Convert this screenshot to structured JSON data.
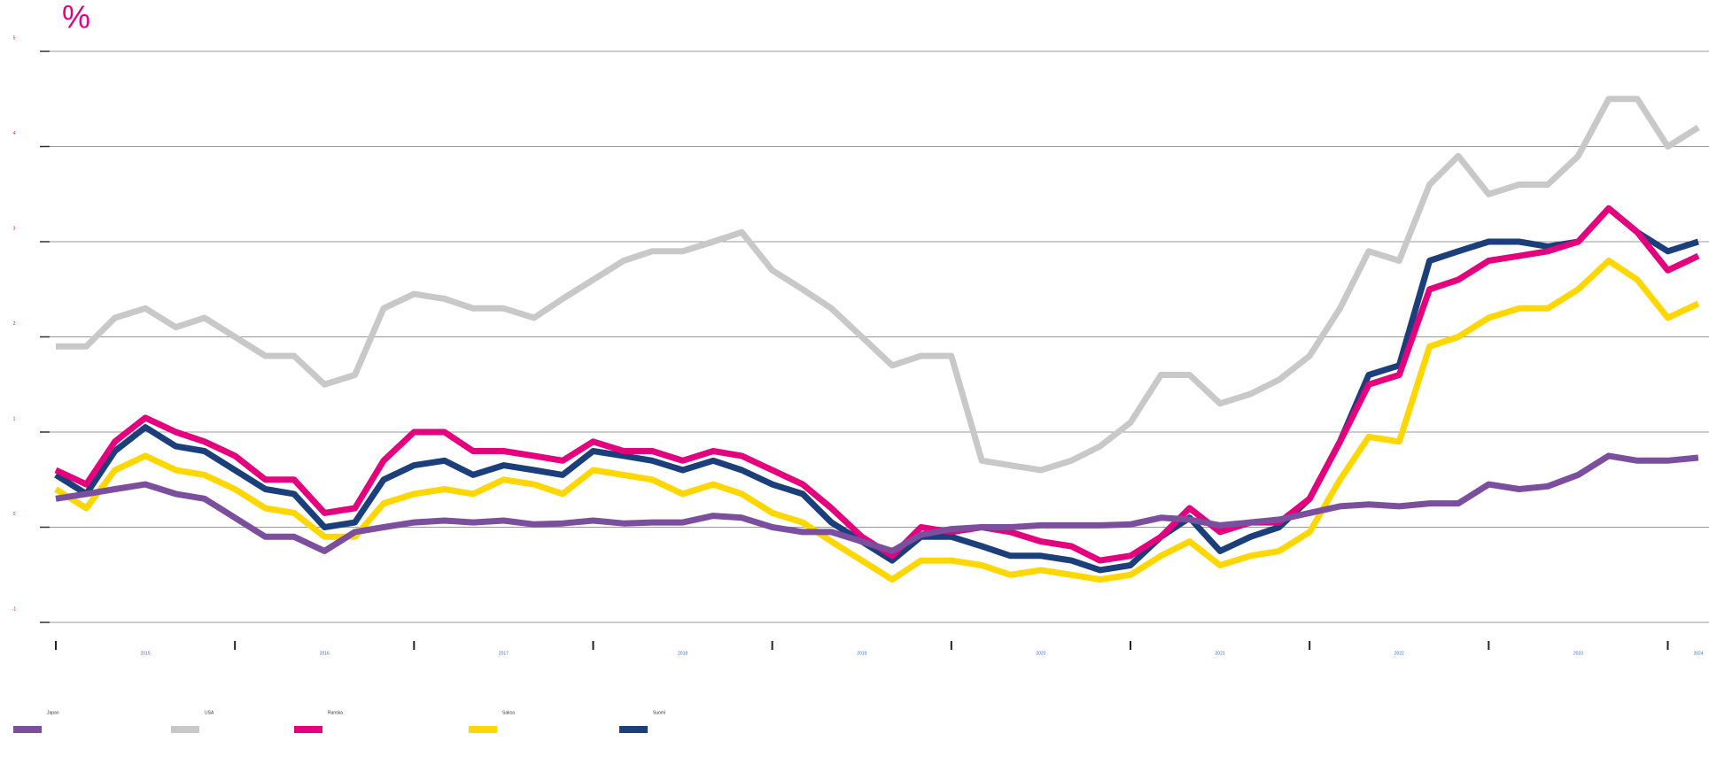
{
  "chart_data": {
    "type": "line",
    "title": "%",
    "x": [
      2015,
      2015.17,
      2015.33,
      2015.5,
      2015.67,
      2015.83,
      2016,
      2016.17,
      2016.33,
      2016.5,
      2016.67,
      2016.83,
      2017,
      2017.17,
      2017.33,
      2017.5,
      2017.67,
      2017.83,
      2018,
      2018.17,
      2018.33,
      2018.5,
      2018.67,
      2018.83,
      2019,
      2019.17,
      2019.33,
      2019.5,
      2019.67,
      2019.83,
      2020,
      2020.17,
      2020.33,
      2020.5,
      2020.67,
      2020.83,
      2021,
      2021.17,
      2021.33,
      2021.5,
      2021.67,
      2021.83,
      2022,
      2022.17,
      2022.33,
      2022.5,
      2022.67,
      2022.83,
      2023,
      2023.17,
      2023.33,
      2023.5,
      2023.67,
      2023.83,
      2024,
      2024.17
    ],
    "series": [
      {
        "name": "Japan",
        "color": "#7b4f9e",
        "values": [
          0.3,
          0.35,
          0.4,
          0.45,
          0.35,
          0.3,
          0.1,
          -0.1,
          -0.1,
          -0.25,
          -0.05,
          0.0,
          0.05,
          0.07,
          0.05,
          0.07,
          0.03,
          0.04,
          0.07,
          0.04,
          0.05,
          0.05,
          0.12,
          0.1,
          0.0,
          -0.05,
          -0.05,
          -0.15,
          -0.25,
          -0.08,
          -0.02,
          0.0,
          0.0,
          0.02,
          0.02,
          0.02,
          0.03,
          0.1,
          0.08,
          0.02,
          0.05,
          0.08,
          0.15,
          0.22,
          0.24,
          0.22,
          0.25,
          0.25,
          0.45,
          0.4,
          0.43,
          0.55,
          0.75,
          0.7,
          0.7,
          0.73
        ]
      },
      {
        "name": "USA",
        "color": "#c8c8c8",
        "values": [
          1.9,
          1.9,
          2.2,
          2.3,
          2.1,
          2.2,
          2.0,
          1.8,
          1.8,
          1.5,
          1.6,
          2.3,
          2.45,
          2.4,
          2.3,
          2.3,
          2.2,
          2.4,
          2.6,
          2.8,
          2.9,
          2.9,
          3.0,
          3.1,
          2.7,
          2.5,
          2.3,
          2.0,
          1.7,
          1.8,
          1.8,
          0.7,
          0.65,
          0.6,
          0.7,
          0.85,
          1.1,
          1.6,
          1.6,
          1.3,
          1.4,
          1.55,
          1.8,
          2.3,
          2.9,
          2.8,
          3.6,
          3.9,
          3.5,
          3.6,
          3.6,
          3.9,
          4.5,
          4.5,
          4.0,
          4.2
        ]
      },
      {
        "name": "Ranska",
        "color": "#e5007e",
        "values": [
          0.6,
          0.45,
          0.9,
          1.15,
          1.0,
          0.9,
          0.75,
          0.5,
          0.5,
          0.15,
          0.2,
          0.7,
          1.0,
          1.0,
          0.8,
          0.8,
          0.75,
          0.7,
          0.9,
          0.8,
          0.8,
          0.7,
          0.8,
          0.75,
          0.6,
          0.45,
          0.2,
          -0.1,
          -0.3,
          0.0,
          -0.05,
          0.0,
          -0.05,
          -0.15,
          -0.2,
          -0.35,
          -0.3,
          -0.1,
          0.2,
          -0.05,
          0.05,
          0.05,
          0.3,
          0.9,
          1.5,
          1.6,
          2.5,
          2.6,
          2.8,
          2.85,
          2.9,
          3.0,
          3.35,
          3.1,
          2.7,
          2.85
        ]
      },
      {
        "name": "Saksa",
        "color": "#ffd700",
        "values": [
          0.4,
          0.2,
          0.6,
          0.75,
          0.6,
          0.55,
          0.4,
          0.2,
          0.15,
          -0.1,
          -0.1,
          0.25,
          0.35,
          0.4,
          0.35,
          0.5,
          0.45,
          0.35,
          0.6,
          0.55,
          0.5,
          0.35,
          0.45,
          0.35,
          0.15,
          0.05,
          -0.15,
          -0.35,
          -0.55,
          -0.35,
          -0.35,
          -0.4,
          -0.5,
          -0.45,
          -0.5,
          -0.55,
          -0.5,
          -0.3,
          -0.15,
          -0.4,
          -0.3,
          -0.25,
          -0.05,
          0.5,
          0.95,
          0.9,
          1.9,
          2.0,
          2.2,
          2.3,
          2.3,
          2.5,
          2.8,
          2.6,
          2.2,
          2.35
        ]
      },
      {
        "name": "Suomi",
        "color": "#1b3f7a",
        "values": [
          0.55,
          0.35,
          0.8,
          1.05,
          0.85,
          0.8,
          0.6,
          0.4,
          0.35,
          0.0,
          0.05,
          0.5,
          0.65,
          0.7,
          0.55,
          0.65,
          0.6,
          0.55,
          0.8,
          0.75,
          0.7,
          0.6,
          0.7,
          0.6,
          0.45,
          0.35,
          0.05,
          -0.15,
          -0.35,
          -0.1,
          -0.1,
          -0.2,
          -0.3,
          -0.3,
          -0.35,
          -0.45,
          -0.4,
          -0.1,
          0.1,
          -0.25,
          -0.1,
          0.0,
          0.3,
          0.9,
          1.6,
          1.7,
          2.8,
          2.9,
          3.0,
          3.0,
          2.95,
          3.0,
          3.35,
          3.1,
          2.9,
          3.0
        ]
      }
    ],
    "xlim": [
      2015,
      2024.23
    ],
    "xticks": [
      2015,
      2016,
      2017,
      2018,
      2019,
      2020,
      2021,
      2022,
      2023,
      2024
    ],
    "ylim": [
      -1,
      5
    ],
    "yticks": [
      5,
      4,
      3,
      2,
      1,
      0,
      -1
    ],
    "grid": true
  }
}
